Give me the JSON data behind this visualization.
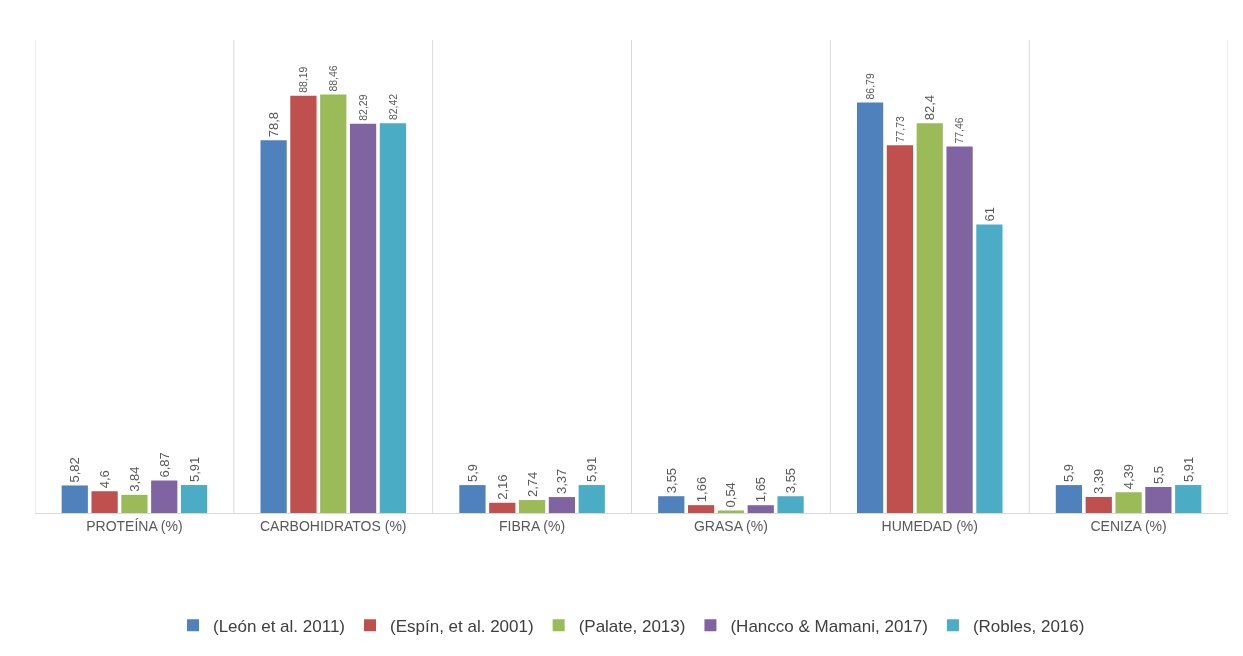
{
  "chart_data": {
    "type": "bar",
    "categories": [
      "PROTEÍNA (%)",
      "CARBOHIDRATOS (%)",
      "FIBRA (%)",
      "GRASA (%)",
      "HUMEDAD (%)",
      "CENIZA (%)"
    ],
    "series": [
      {
        "name": "(León et al. 2011)",
        "color": "#4f81bd",
        "values": [
          5.82,
          78.8,
          5.9,
          3.55,
          86.79,
          5.9
        ],
        "value_labels": [
          "5,82",
          "78,8",
          "5,9",
          "3,55",
          "86,79",
          "5,9"
        ]
      },
      {
        "name": "(Espín, et al. 2001)",
        "color": "#c0504d",
        "values": [
          4.6,
          88.19,
          2.16,
          1.66,
          77.73,
          3.39
        ],
        "value_labels": [
          "4,6",
          "88,19",
          "2,16",
          "1,66",
          "77,73",
          "3,39"
        ]
      },
      {
        "name": "(Palate, 2013)",
        "color": "#9bbb59",
        "values": [
          3.84,
          88.46,
          2.74,
          0.54,
          82.4,
          4.39
        ],
        "value_labels": [
          "3,84",
          "88,46",
          "2,74",
          "0,54",
          "82,4",
          "4,39"
        ]
      },
      {
        "name": "(Hancco & Mamani, 2017)",
        "color": "#8064a2",
        "values": [
          6.87,
          82.29,
          3.37,
          1.65,
          77.46,
          5.5
        ],
        "value_labels": [
          "6,87",
          "82,29",
          "3,37",
          "1,65",
          "77,46",
          "5,5"
        ]
      },
      {
        "name": "(Robles, 2016)",
        "color": "#4bacc6",
        "values": [
          5.91,
          82.42,
          5.91,
          3.55,
          61,
          5.91
        ],
        "value_labels": [
          "5,91",
          "82,42",
          "5,91",
          "3,55",
          "61",
          "5,91"
        ]
      }
    ],
    "ylim": [
      0,
      100
    ],
    "tick_labels": "x",
    "grid": "x",
    "legend": "bottom"
  }
}
